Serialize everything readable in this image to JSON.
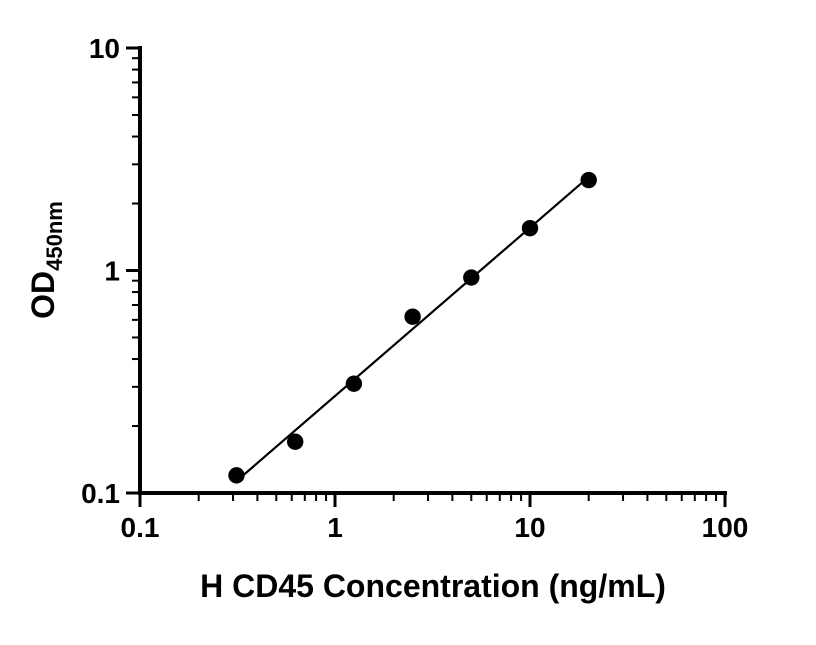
{
  "figure": {
    "background": "#ffffff",
    "axis_color": "#000000"
  },
  "chart_data": {
    "type": "scatter",
    "title": "",
    "xlabel": "H CD45 Concentration (ng/mL)",
    "ylabel": "OD450nm",
    "ylabel_main": "OD",
    "ylabel_sub": "450nm",
    "x_scale": "log10",
    "y_scale": "log10",
    "xlim": [
      0.1,
      100
    ],
    "ylim": [
      0.1,
      10
    ],
    "grid": false,
    "legend": false,
    "x_major_ticks": [
      {
        "value": 0.1,
        "label": "0.1"
      },
      {
        "value": 1,
        "label": "1"
      },
      {
        "value": 10,
        "label": "10"
      },
      {
        "value": 100,
        "label": "100"
      }
    ],
    "y_major_ticks": [
      {
        "value": 0.1,
        "label": "0.1"
      },
      {
        "value": 1,
        "label": "1"
      },
      {
        "value": 10,
        "label": "10"
      }
    ],
    "series": [
      {
        "marker": "filled-circle",
        "marker_color": "#000000",
        "line_color": "#000000",
        "fit": "linear-in-loglog",
        "x": [
          0.3125,
          0.625,
          1.25,
          2.5,
          5,
          10,
          20
        ],
        "y": [
          0.12,
          0.17,
          0.31,
          0.62,
          0.93,
          1.55,
          2.55
        ]
      }
    ]
  }
}
